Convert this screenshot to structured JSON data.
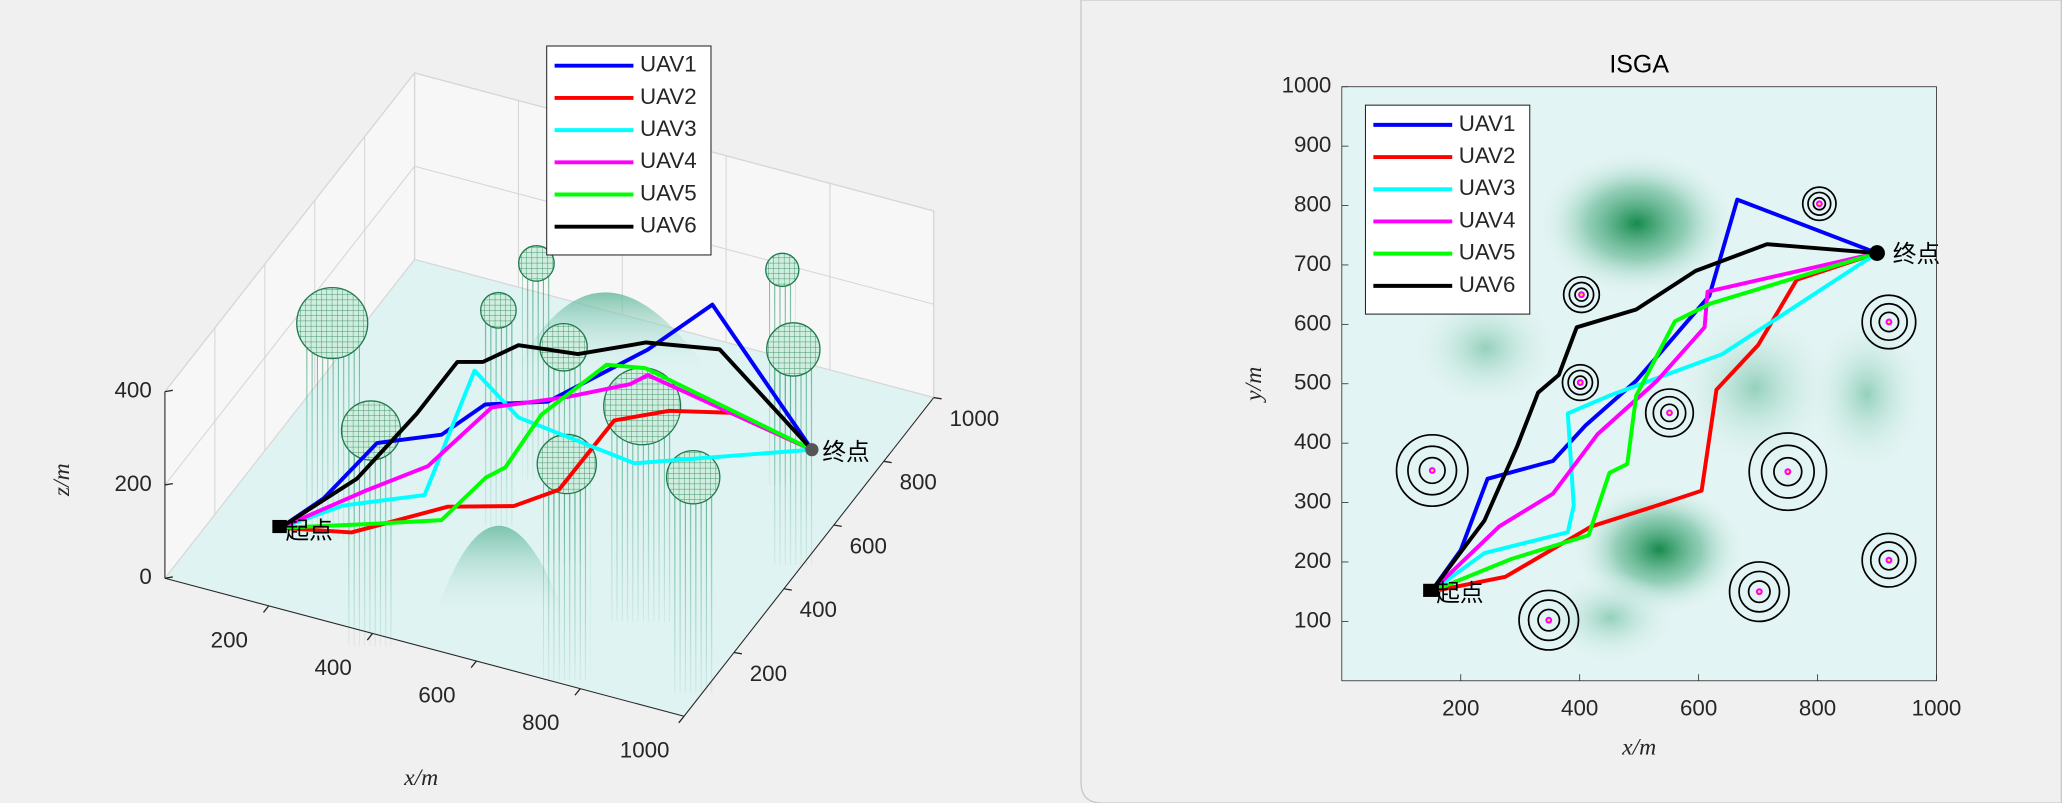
{
  "chart_data": [
    {
      "type": "line3d",
      "legend": "north",
      "grid": true,
      "xlabel": "x/m",
      "zlabel": "z/m",
      "xlim": [
        0,
        1000
      ],
      "xticks": [
        200,
        400,
        600,
        800,
        1000
      ],
      "ylim": [
        0,
        1000
      ],
      "yticks": [
        200,
        400,
        600,
        800,
        1000
      ],
      "zlim": [
        0,
        400
      ],
      "zticks": [
        0,
        200,
        400
      ],
      "series": [
        {
          "name": "UAV1",
          "color": "#0000ff",
          "x": [
            150,
            200,
            245,
            355,
            410,
            495,
            618,
            665,
            900
          ],
          "y": [
            150,
            220,
            340,
            370,
            430,
            505,
            648,
            810,
            720
          ],
          "z": [
            50,
            80,
            130,
            160,
            200,
            180,
            230,
            230,
            50
          ]
        },
        {
          "name": "UAV2",
          "color": "#ff0000",
          "x": [
            150,
            275,
            420,
            530,
            605,
            630,
            700,
            765,
            900
          ],
          "y": [
            150,
            175,
            260,
            295,
            320,
            490,
            565,
            675,
            720
          ],
          "z": [
            50,
            60,
            100,
            110,
            150,
            190,
            180,
            120,
            50
          ]
        },
        {
          "name": "UAV3",
          "color": "#00ffff",
          "x": [
            150,
            240,
            380,
            390,
            380,
            450,
            640,
            900
          ],
          "y": [
            150,
            215,
            250,
            295,
            450,
            480,
            550,
            720
          ],
          "z": [
            50,
            80,
            120,
            180,
            250,
            150,
            60,
            50
          ]
        },
        {
          "name": "UAV4",
          "color": "#ff00ff",
          "x": [
            150,
            265,
            355,
            430,
            530,
            610,
            615,
            900
          ],
          "y": [
            150,
            260,
            315,
            415,
            505,
            595,
            655,
            720
          ],
          "z": [
            50,
            90,
            130,
            210,
            200,
            190,
            170,
            50
          ]
        },
        {
          "name": "UAV5",
          "color": "#00ff00",
          "x": [
            150,
            285,
            415,
            450,
            480,
            495,
            560,
            620,
            900
          ],
          "y": [
            150,
            205,
            245,
            350,
            365,
            480,
            605,
            635,
            720
          ],
          "z": [
            50,
            60,
            80,
            110,
            130,
            170,
            210,
            200,
            50
          ]
        },
        {
          "name": "UAV6",
          "color": "#000000",
          "x": [
            150,
            240,
            295,
            330,
            365,
            395,
            495,
            595,
            715,
            900
          ],
          "y": [
            150,
            270,
            395,
            485,
            515,
            595,
            625,
            690,
            735,
            720
          ],
          "z": [
            50,
            100,
            170,
            230,
            220,
            210,
            200,
            210,
            200,
            50
          ]
        }
      ],
      "obstacles": [
        {
          "x": 152,
          "y": 354,
          "r": 60,
          "z": 350
        },
        {
          "x": 348,
          "y": 102,
          "r": 50,
          "z": 350
        },
        {
          "x": 403,
          "y": 650,
          "r": 30,
          "z": 350
        },
        {
          "x": 401,
          "y": 502,
          "r": 30,
          "z": 350
        },
        {
          "x": 551,
          "y": 451,
          "r": 40,
          "z": 350
        },
        {
          "x": 750,
          "y": 352,
          "r": 65,
          "z": 350
        },
        {
          "x": 702,
          "y": 150,
          "r": 50,
          "z": 350
        },
        {
          "x": 803,
          "y": 803,
          "r": 28,
          "z": 350
        },
        {
          "x": 920,
          "y": 604,
          "r": 45,
          "z": 350
        },
        {
          "x": 920,
          "y": 203,
          "r": 45,
          "z": 350
        }
      ],
      "annotations": [
        {
          "text": "起点",
          "x": 150,
          "y": 150,
          "z": 50
        },
        {
          "text": "终点",
          "x": 900,
          "y": 720,
          "z": 50
        }
      ]
    },
    {
      "type": "line",
      "title": "ISGA",
      "legend": "northwest",
      "grid": false,
      "xlabel": "x/m",
      "ylabel": "y/m",
      "xlim": [
        0,
        1000
      ],
      "xticks": [
        200,
        400,
        600,
        800,
        1000
      ],
      "ylim": [
        0,
        1000
      ],
      "yticks": [
        100,
        200,
        300,
        400,
        500,
        600,
        700,
        800,
        900,
        1000
      ],
      "series": [
        {
          "name": "UAV1",
          "color": "#0000ff",
          "x": [
            150,
            200,
            245,
            355,
            410,
            495,
            618,
            665,
            900
          ],
          "y": [
            150,
            220,
            340,
            370,
            430,
            505,
            648,
            810,
            720
          ]
        },
        {
          "name": "UAV2",
          "color": "#ff0000",
          "x": [
            150,
            275,
            420,
            530,
            605,
            630,
            700,
            765,
            900
          ],
          "y": [
            150,
            175,
            260,
            295,
            320,
            490,
            565,
            675,
            720
          ]
        },
        {
          "name": "UAV3",
          "color": "#00ffff",
          "x": [
            150,
            240,
            380,
            390,
            380,
            450,
            640,
            900
          ],
          "y": [
            150,
            215,
            250,
            295,
            450,
            480,
            550,
            720
          ]
        },
        {
          "name": "UAV4",
          "color": "#ff00ff",
          "x": [
            150,
            265,
            355,
            430,
            530,
            610,
            615,
            900
          ],
          "y": [
            150,
            260,
            315,
            415,
            505,
            595,
            655,
            720
          ]
        },
        {
          "name": "UAV5",
          "color": "#00ff00",
          "x": [
            150,
            285,
            415,
            450,
            480,
            495,
            560,
            620,
            900
          ],
          "y": [
            150,
            205,
            245,
            350,
            365,
            480,
            605,
            635,
            720
          ]
        },
        {
          "name": "UAV6",
          "color": "#000000",
          "x": [
            150,
            240,
            295,
            330,
            365,
            395,
            495,
            595,
            715,
            900
          ],
          "y": [
            150,
            270,
            395,
            485,
            515,
            595,
            625,
            690,
            735,
            720
          ]
        }
      ],
      "obstacles": [
        {
          "x": 152,
          "y": 354,
          "r": 60
        },
        {
          "x": 348,
          "y": 102,
          "r": 50
        },
        {
          "x": 403,
          "y": 650,
          "r": 30
        },
        {
          "x": 401,
          "y": 502,
          "r": 30
        },
        {
          "x": 551,
          "y": 451,
          "r": 40
        },
        {
          "x": 750,
          "y": 352,
          "r": 65
        },
        {
          "x": 702,
          "y": 150,
          "r": 50
        },
        {
          "x": 803,
          "y": 803,
          "r": 28
        },
        {
          "x": 920,
          "y": 604,
          "r": 45
        },
        {
          "x": 920,
          "y": 203,
          "r": 45
        }
      ],
      "annotations": [
        {
          "text": "起点",
          "x": 150,
          "y": 150
        },
        {
          "text": "终点",
          "x": 900,
          "y": 720
        }
      ]
    }
  ]
}
